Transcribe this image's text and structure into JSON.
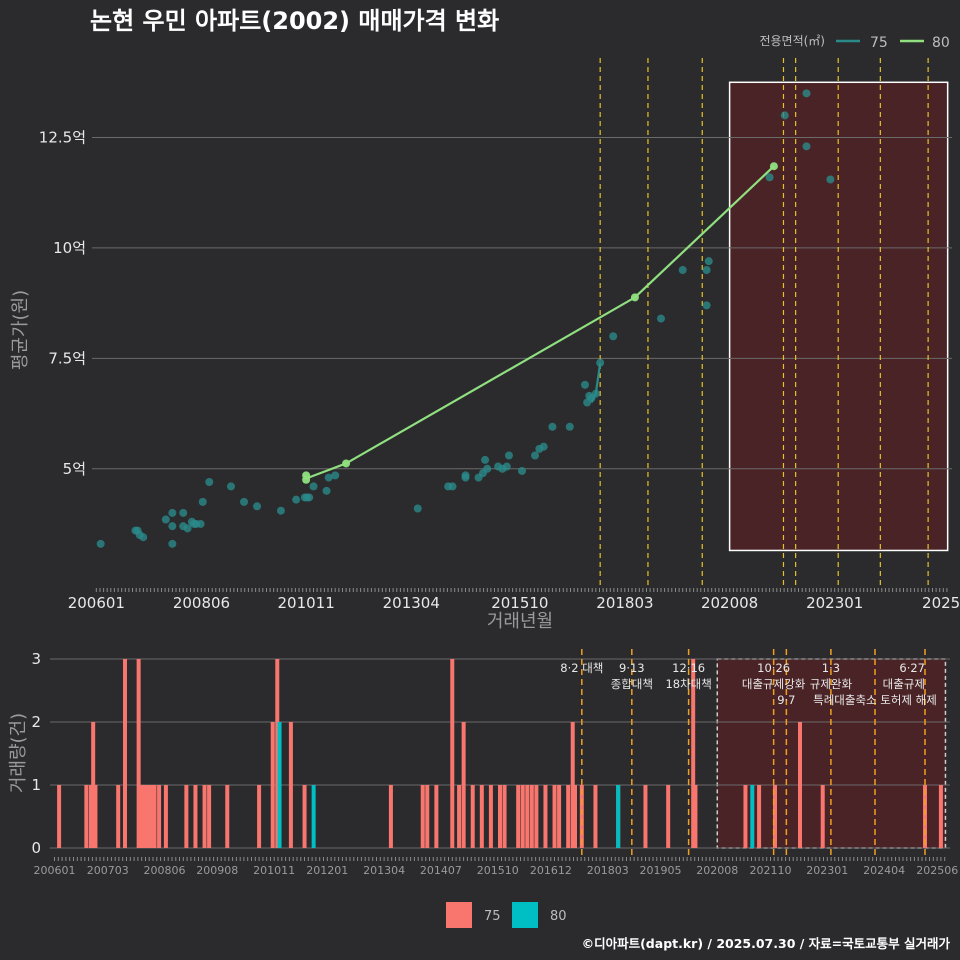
{
  "header": {
    "title": "논현 우민 아파트(2002) 매매가격 변화",
    "credit": "©디아파트(dapt.kr) / 2025.07.30 / 자료=국토교통부 실거래가"
  },
  "colors": {
    "background": "#2b2b2d",
    "series75": "#2a8a8a",
    "series80": "#90e080",
    "bar75": "#f8766d",
    "bar80": "#00bfc4",
    "event_line": "#e6c229",
    "highlight_fill": "#4a2326"
  },
  "chart_data": [
    {
      "type": "scatter",
      "name": "price",
      "xlabel": "거래년월",
      "ylabel": "평균가(원)",
      "xlim": [
        2005.9,
        2025.7
      ],
      "ylim": [
        2.3,
        14.3
      ],
      "x_ticks": [
        {
          "label": "200601",
          "x": 2006.0
        },
        {
          "label": "200806",
          "x": 2008.42
        },
        {
          "label": "201011",
          "x": 2010.83
        },
        {
          "label": "201304",
          "x": 2013.25
        },
        {
          "label": "201510",
          "x": 2015.75
        },
        {
          "label": "201803",
          "x": 2018.17
        },
        {
          "label": "202008",
          "x": 2020.58
        },
        {
          "label": "202301",
          "x": 2023.0
        },
        {
          "label": "2025",
          "x": 2025.45
        }
      ],
      "y_ticks": [
        {
          "label": "5억",
          "v": 5
        },
        {
          "label": "7.5억",
          "v": 7.5
        },
        {
          "label": "10억",
          "v": 10
        },
        {
          "label": "12.5억",
          "v": 12.5
        }
      ],
      "legend": {
        "title": "전용면적(㎡)",
        "placement": "top-right",
        "entries": [
          "75",
          "80"
        ]
      },
      "series": [
        {
          "name": "75",
          "points": [
            [
              2006.1,
              3.3
            ],
            [
              2006.9,
              3.6
            ],
            [
              2006.95,
              3.6
            ],
            [
              2007.0,
              3.5
            ],
            [
              2007.08,
              3.45
            ],
            [
              2007.6,
              3.85
            ],
            [
              2007.75,
              3.7
            ],
            [
              2007.75,
              4.0
            ],
            [
              2007.75,
              3.3
            ],
            [
              2008.0,
              4.0
            ],
            [
              2008.0,
              3.7
            ],
            [
              2008.1,
              3.65
            ],
            [
              2008.2,
              3.8
            ],
            [
              2008.25,
              3.75
            ],
            [
              2008.3,
              3.75
            ],
            [
              2008.4,
              3.75
            ],
            [
              2008.45,
              4.25
            ],
            [
              2008.6,
              4.7
            ],
            [
              2009.1,
              4.6
            ],
            [
              2009.4,
              4.25
            ],
            [
              2009.7,
              4.15
            ],
            [
              2010.25,
              4.05
            ],
            [
              2010.6,
              4.3
            ],
            [
              2010.8,
              4.35
            ],
            [
              2010.85,
              4.35
            ],
            [
              2010.9,
              4.35
            ],
            [
              2011.0,
              4.6
            ],
            [
              2011.3,
              4.5
            ],
            [
              2011.35,
              4.8
            ],
            [
              2011.5,
              4.85
            ],
            [
              2013.4,
              4.1
            ],
            [
              2014.1,
              4.6
            ],
            [
              2014.2,
              4.6
            ],
            [
              2014.5,
              4.8
            ],
            [
              2014.5,
              4.85
            ],
            [
              2014.8,
              4.8
            ],
            [
              2014.9,
              4.9
            ],
            [
              2014.95,
              5.2
            ],
            [
              2015.0,
              5.0
            ],
            [
              2015.25,
              5.05
            ],
            [
              2015.35,
              5.0
            ],
            [
              2015.45,
              5.05
            ],
            [
              2015.5,
              5.3
            ],
            [
              2015.8,
              4.95
            ],
            [
              2016.1,
              5.3
            ],
            [
              2016.2,
              5.45
            ],
            [
              2016.3,
              5.5
            ],
            [
              2016.5,
              5.95
            ],
            [
              2016.9,
              5.95
            ],
            [
              2017.25,
              6.9
            ],
            [
              2017.3,
              6.5
            ],
            [
              2017.35,
              6.65
            ],
            [
              2017.4,
              6.6
            ],
            [
              2017.5,
              6.7
            ],
            [
              2017.6,
              7.4
            ],
            [
              2017.9,
              8.0
            ],
            [
              2019.0,
              8.4
            ],
            [
              2019.5,
              9.5
            ],
            [
              2020.05,
              9.5
            ],
            [
              2020.1,
              9.7
            ],
            [
              2020.05,
              8.7
            ],
            [
              2021.5,
              11.6
            ],
            [
              2021.85,
              13.0
            ],
            [
              2022.35,
              12.3
            ],
            [
              2022.35,
              13.5
            ],
            [
              2022.9,
              11.55
            ]
          ],
          "line": [
            [
              2017.4,
              6.5
            ],
            [
              2017.5,
              6.7
            ],
            [
              2017.6,
              7.4
            ]
          ]
        },
        {
          "name": "80",
          "points": [
            [
              2010.83,
              4.75
            ],
            [
              2010.83,
              4.85
            ],
            [
              2011.75,
              5.12
            ],
            [
              2018.4,
              8.88
            ],
            [
              2021.6,
              11.85
            ]
          ],
          "line": [
            [
              2010.83,
              4.78
            ],
            [
              2011.75,
              5.12
            ],
            [
              2018.4,
              8.88
            ],
            [
              2021.6,
              11.85
            ]
          ]
        }
      ],
      "highlight": {
        "x0": 2020.58,
        "x1": 2025.6,
        "y0": 3.15,
        "y1": 13.75
      },
      "event_lines": [
        2017.6,
        2018.7,
        2019.95,
        2021.82,
        2022.1,
        2023.08,
        2024.05,
        2025.15
      ]
    },
    {
      "type": "bar",
      "name": "volume",
      "ylabel": "거래량(건)",
      "xlim": [
        2005.9,
        2025.7
      ],
      "ylim": [
        0,
        3
      ],
      "y_ticks": [
        "0",
        "1",
        "2",
        "3"
      ],
      "x_ticks": [
        {
          "label": "200601",
          "x": 2006.0
        },
        {
          "label": "200703",
          "x": 2007.17
        },
        {
          "label": "200806",
          "x": 2008.42
        },
        {
          "label": "200908",
          "x": 2009.58
        },
        {
          "label": "201011",
          "x": 2010.83
        },
        {
          "label": "201201",
          "x": 2012.0
        },
        {
          "label": "201304",
          "x": 2013.25
        },
        {
          "label": "201407",
          "x": 2014.5
        },
        {
          "label": "201510",
          "x": 2015.75
        },
        {
          "label": "201612",
          "x": 2016.92
        },
        {
          "label": "201803",
          "x": 2018.17
        },
        {
          "label": "201905",
          "x": 2019.33
        },
        {
          "label": "202008",
          "x": 2020.58
        },
        {
          "label": "202110",
          "x": 2021.75
        },
        {
          "label": "202301",
          "x": 2023.0
        },
        {
          "label": "202404",
          "x": 2024.25
        },
        {
          "label": "202506",
          "x": 2025.42
        }
      ],
      "legend": {
        "placement": "bottom",
        "entries": [
          "75",
          "80"
        ]
      },
      "bars75": [
        [
          2006.1,
          1
        ],
        [
          2006.7,
          1
        ],
        [
          2006.8,
          1
        ],
        [
          2006.85,
          2
        ],
        [
          2006.9,
          1
        ],
        [
          2007.4,
          1
        ],
        [
          2007.55,
          3
        ],
        [
          2007.85,
          3
        ],
        [
          2007.9,
          1
        ],
        [
          2007.95,
          1
        ],
        [
          2008.0,
          1
        ],
        [
          2008.05,
          1
        ],
        [
          2008.1,
          1
        ],
        [
          2008.15,
          1
        ],
        [
          2008.2,
          1
        ],
        [
          2008.3,
          1
        ],
        [
          2008.45,
          1
        ],
        [
          2008.9,
          1
        ],
        [
          2009.1,
          1
        ],
        [
          2009.3,
          1
        ],
        [
          2009.4,
          1
        ],
        [
          2009.8,
          1
        ],
        [
          2010.5,
          1
        ],
        [
          2010.8,
          2
        ],
        [
          2010.9,
          3
        ],
        [
          2011.2,
          2
        ],
        [
          2011.5,
          1
        ],
        [
          2013.4,
          1
        ],
        [
          2014.1,
          1
        ],
        [
          2014.2,
          1
        ],
        [
          2014.4,
          1
        ],
        [
          2014.75,
          3
        ],
        [
          2014.9,
          1
        ],
        [
          2015.0,
          2
        ],
        [
          2015.2,
          1
        ],
        [
          2015.4,
          1
        ],
        [
          2015.6,
          1
        ],
        [
          2015.8,
          1
        ],
        [
          2015.9,
          1
        ],
        [
          2016.2,
          1
        ],
        [
          2016.3,
          1
        ],
        [
          2016.4,
          1
        ],
        [
          2016.5,
          1
        ],
        [
          2016.6,
          1
        ],
        [
          2016.8,
          1
        ],
        [
          2017.0,
          1
        ],
        [
          2017.1,
          1
        ],
        [
          2017.3,
          1
        ],
        [
          2017.4,
          2
        ],
        [
          2017.45,
          1
        ],
        [
          2017.6,
          1
        ],
        [
          2017.9,
          1
        ],
        [
          2018.4,
          1
        ],
        [
          2019.0,
          1
        ],
        [
          2019.5,
          1
        ],
        [
          2020.05,
          3
        ],
        [
          2020.1,
          1
        ],
        [
          2021.2,
          1
        ],
        [
          2021.5,
          1
        ],
        [
          2021.85,
          1
        ],
        [
          2022.4,
          2
        ],
        [
          2022.9,
          1
        ],
        [
          2025.15,
          1
        ],
        [
          2025.5,
          1
        ]
      ],
      "bars80": [
        [
          2010.95,
          2
        ],
        [
          2011.7,
          1
        ],
        [
          2018.4,
          1
        ],
        [
          2021.35,
          1
        ]
      ],
      "events": [
        {
          "x": 2017.6,
          "lines": [
            "8·2 대책"
          ]
        },
        {
          "x": 2018.7,
          "lines": [
            "9·13",
            "종합대책"
          ]
        },
        {
          "x": 2019.95,
          "lines": [
            "12·16",
            "18차대책"
          ]
        },
        {
          "x": 2021.82,
          "lines": [
            "10·26",
            "대출규제강화"
          ]
        },
        {
          "x": 2022.1,
          "lines": [
            "",
            "",
            "9·7"
          ]
        },
        {
          "x": 2023.08,
          "lines": [
            "1·3",
            "규제완화"
          ]
        },
        {
          "x": 2024.05,
          "lines": [
            "",
            "",
            "특례대출축소 토허제 해제"
          ]
        },
        {
          "x": 2025.15,
          "lines": [
            "6·27",
            "대출규제"
          ]
        }
      ],
      "highlight": {
        "x0": 2020.58,
        "x1": 2025.6
      }
    }
  ]
}
